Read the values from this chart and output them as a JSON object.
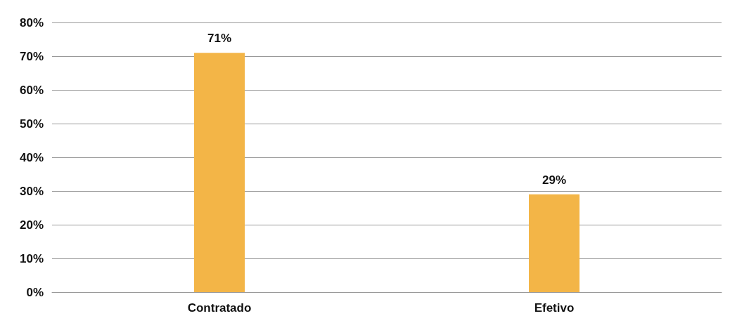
{
  "chart_data": {
    "type": "bar",
    "categories": [
      "Contratado",
      "Efetivo"
    ],
    "values": [
      71,
      29
    ],
    "value_labels": [
      "71%",
      "29%"
    ],
    "color": "#f3b547",
    "ylim": [
      0,
      80
    ],
    "yticks": [
      {
        "value": 0,
        "label": "0%"
      },
      {
        "value": 10,
        "label": "10%"
      },
      {
        "value": 20,
        "label": "20%"
      },
      {
        "value": 30,
        "label": "30%"
      },
      {
        "value": 40,
        "label": "40%"
      },
      {
        "value": 50,
        "label": "50%"
      },
      {
        "value": 60,
        "label": "60%"
      },
      {
        "value": 70,
        "label": "70%"
      },
      {
        "value": 80,
        "label": "80%"
      }
    ],
    "grid": "y"
  }
}
